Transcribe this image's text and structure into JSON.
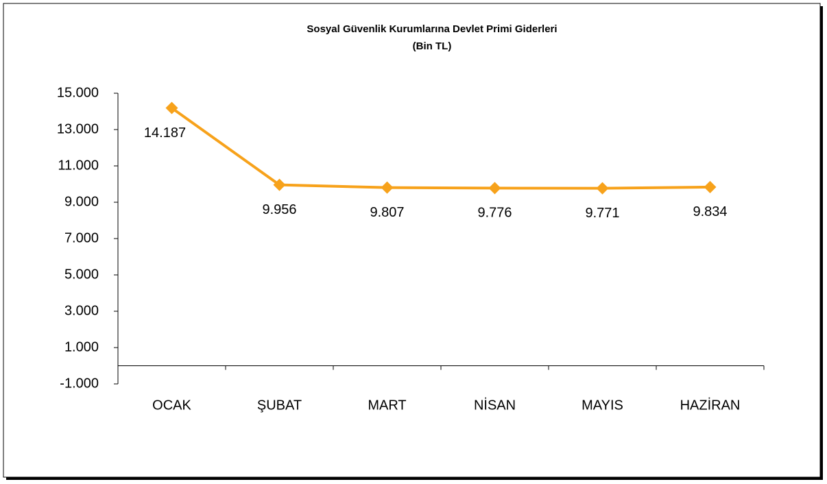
{
  "chart_data": {
    "type": "line",
    "title": "Sosyal Güvenlik Kurumlarına Devlet Primi Giderleri",
    "subtitle": "(Bin TL)",
    "categories": [
      "OCAK",
      "ŞUBAT",
      "MART",
      "NİSAN",
      "MAYIS",
      "HAZİRAN"
    ],
    "series": [
      {
        "name": "Devlet Primi Giderleri",
        "color": "#f7a21b",
        "values": [
          14187,
          9956,
          9807,
          9776,
          9771,
          9834
        ],
        "value_labels": [
          "14.187",
          "9.956",
          "9.807",
          "9.776",
          "9.771",
          "9.834"
        ]
      }
    ],
    "ylim": [
      -1000,
      15000
    ],
    "yticks": [
      {
        "value": -1000,
        "label": "-1.000"
      },
      {
        "value": 1000,
        "label": "1.000"
      },
      {
        "value": 3000,
        "label": "3.000"
      },
      {
        "value": 5000,
        "label": "5.000"
      },
      {
        "value": 7000,
        "label": "7.000"
      },
      {
        "value": 9000,
        "label": "9.000"
      },
      {
        "value": 11000,
        "label": "11.000"
      },
      {
        "value": 13000,
        "label": "13.000"
      },
      {
        "value": 15000,
        "label": "15.000"
      }
    ],
    "grid": false
  }
}
